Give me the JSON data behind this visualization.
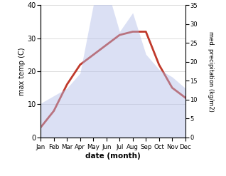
{
  "months": [
    "Jan",
    "Feb",
    "Mar",
    "Apr",
    "May",
    "Jun",
    "Jul",
    "Aug",
    "Sep",
    "Oct",
    "Nov",
    "Dec"
  ],
  "temperature": [
    3,
    8,
    16,
    22,
    25,
    28,
    31,
    32,
    32,
    22,
    15,
    12
  ],
  "precipitation": [
    9,
    11,
    13,
    17,
    35,
    40,
    28,
    33,
    22,
    18,
    16,
    13
  ],
  "temp_ylim": [
    0,
    40
  ],
  "precip_ylim": [
    0,
    35
  ],
  "temp_color": "#c0392b",
  "precip_fill_color": "#b0bce8",
  "xlabel": "date (month)",
  "ylabel_left": "max temp (C)",
  "ylabel_right": "med. precipitation (kg/m2)",
  "grid_color": "#d0d0d0",
  "temp_linewidth": 2.0
}
